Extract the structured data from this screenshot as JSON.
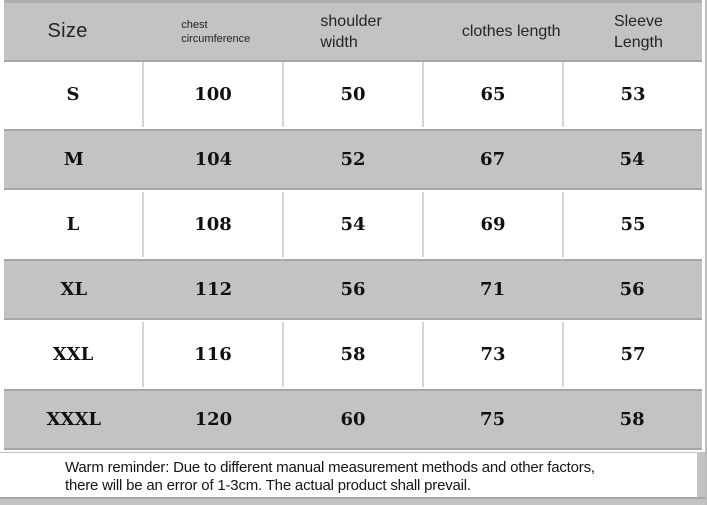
{
  "table": {
    "columns": {
      "size": {
        "label": "Size"
      },
      "chest": {
        "line1": "chest",
        "line2": "circumference"
      },
      "shoulder": {
        "line1": "shoulder",
        "line2": "width"
      },
      "length": {
        "label": "clothes length"
      },
      "sleeve": {
        "line1": "Sleeve",
        "line2": "Length"
      }
    },
    "rows": [
      {
        "size": "S",
        "chest": "100",
        "shoulder": "50",
        "length": "65",
        "sleeve": "53"
      },
      {
        "size": "M",
        "chest": "104",
        "shoulder": "52",
        "length": "67",
        "sleeve": "54"
      },
      {
        "size": "L",
        "chest": "108",
        "shoulder": "54",
        "length": "69",
        "sleeve": "55"
      },
      {
        "size": "XL",
        "chest": "112",
        "shoulder": "56",
        "length": "71",
        "sleeve": "56"
      },
      {
        "size": "XXL",
        "chest": "116",
        "shoulder": "58",
        "length": "73",
        "sleeve": "57"
      },
      {
        "size": "XXXL",
        "chest": "120",
        "shoulder": "60",
        "length": "75",
        "sleeve": "58"
      }
    ]
  },
  "reminder": {
    "line1": "Warm reminder: Due to different manual measurement methods and other factors,",
    "line2": "there will be an error of 1-3cm. The actual product shall prevail."
  },
  "colors": {
    "band_gray": "#c3c3c3",
    "border_dark": "#a6a6a6",
    "divider_light": "#d4d4d4",
    "text": "#101010"
  }
}
